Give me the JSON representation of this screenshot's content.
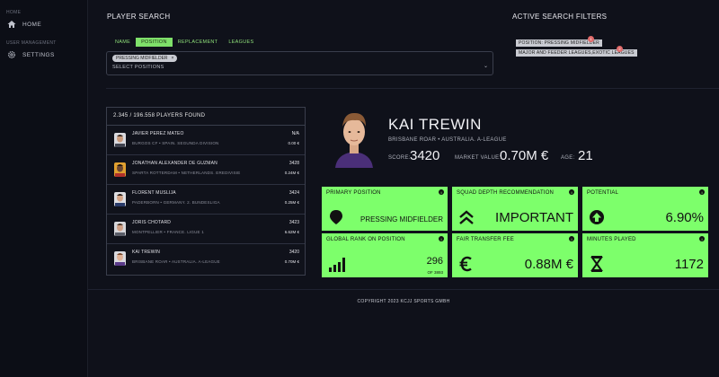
{
  "sidebar": {
    "section_home": "HOME",
    "home_label": "HOME",
    "section_user": "USER MANAGEMENT",
    "settings_label": "SETTINGS",
    "home_icon": "home-icon",
    "settings_icon": "gear-icon"
  },
  "header": {
    "title": "PLAYER SEARCH",
    "filters_title": "ACTIVE SEARCH FILTERS"
  },
  "tabs": [
    {
      "label": "NAME",
      "active": false
    },
    {
      "label": "POSITION",
      "active": true
    },
    {
      "label": "REPLACEMENT",
      "active": false
    },
    {
      "label": "LEAGUES",
      "active": false
    }
  ],
  "select": {
    "chip": "PRESSING MIDFIELDER",
    "placeholder": "SELECT POSITIONS"
  },
  "active_filters": [
    {
      "label": "POSITION: PRESSING MIDFIELDER",
      "badge": "1"
    },
    {
      "label": "MAJOR AND FEEDER LEAGUES,EXOTIC LEAGUES",
      "badge": "2"
    }
  ],
  "results": {
    "count": "2.345 / 196.558 PLAYERS FOUND",
    "players": [
      {
        "name": "JAVIER PEREZ MATEO",
        "club": "BURGOS CF • SPAIN. SEGUNDA DIVISION",
        "score": "N/A",
        "value": "0.00 €"
      },
      {
        "name": "JONATHAN ALEXANDER DE GUZMAN",
        "club": "SPARTA ROTTERDAM • NETHERLANDS. EREDIVISIE",
        "score": "3428",
        "value": "0.24M €"
      },
      {
        "name": "FLORENT MUSLIJA",
        "club": "PADERBORN • GERMANY. 2. BUNDESLIGA",
        "score": "3424",
        "value": "0.25M €"
      },
      {
        "name": "JORIS CHOTARD",
        "club": "MONTPELLIER • FRANCE. LIGUE 1",
        "score": "3423",
        "value": "6.62M €"
      },
      {
        "name": "KAI TREWIN",
        "club": "BRISBANE ROAR • AUSTRALIA. A-LEAGUE",
        "score": "3420",
        "value": "0.70M €"
      }
    ]
  },
  "profile": {
    "name": "KAI TREWIN",
    "club": "BRISBANE ROAR   •   AUSTRALIA. A-LEAGUE",
    "score_label": "SCORE:",
    "score": "3420",
    "market_label": "MARKET VALUE:",
    "market_value": "0.70M €",
    "age_label": "AGE:",
    "age": "21"
  },
  "tiles": [
    {
      "label": "PRIMARY POSITION",
      "value": "PRESSING MIDFIELDER",
      "icon": "location-pin-icon"
    },
    {
      "label": "SQUAD DEPTH RECOMMENDATION",
      "value": "IMPORTANT",
      "icon": "double-chevron-up-icon"
    },
    {
      "label": "POTENTIAL",
      "value": "6.90%",
      "icon": "arrow-up-circle-icon"
    },
    {
      "label": "GLOBAL RANK ON POSITION",
      "value": "296",
      "sub": "OF 3893",
      "icon": "signal-bars-icon"
    },
    {
      "label": "FAIR TRANSFER FEE",
      "value": "0.88M €",
      "icon": "euro-icon"
    },
    {
      "label": "MINUTES PLAYED",
      "value": "1172",
      "icon": "hourglass-icon"
    }
  ],
  "info_glyph": "i",
  "footer": "COPYRIGHT 2023 KCJJ SPORTS GMBH",
  "colors": {
    "accent": "#7dff6b",
    "background": "#0f111a"
  }
}
